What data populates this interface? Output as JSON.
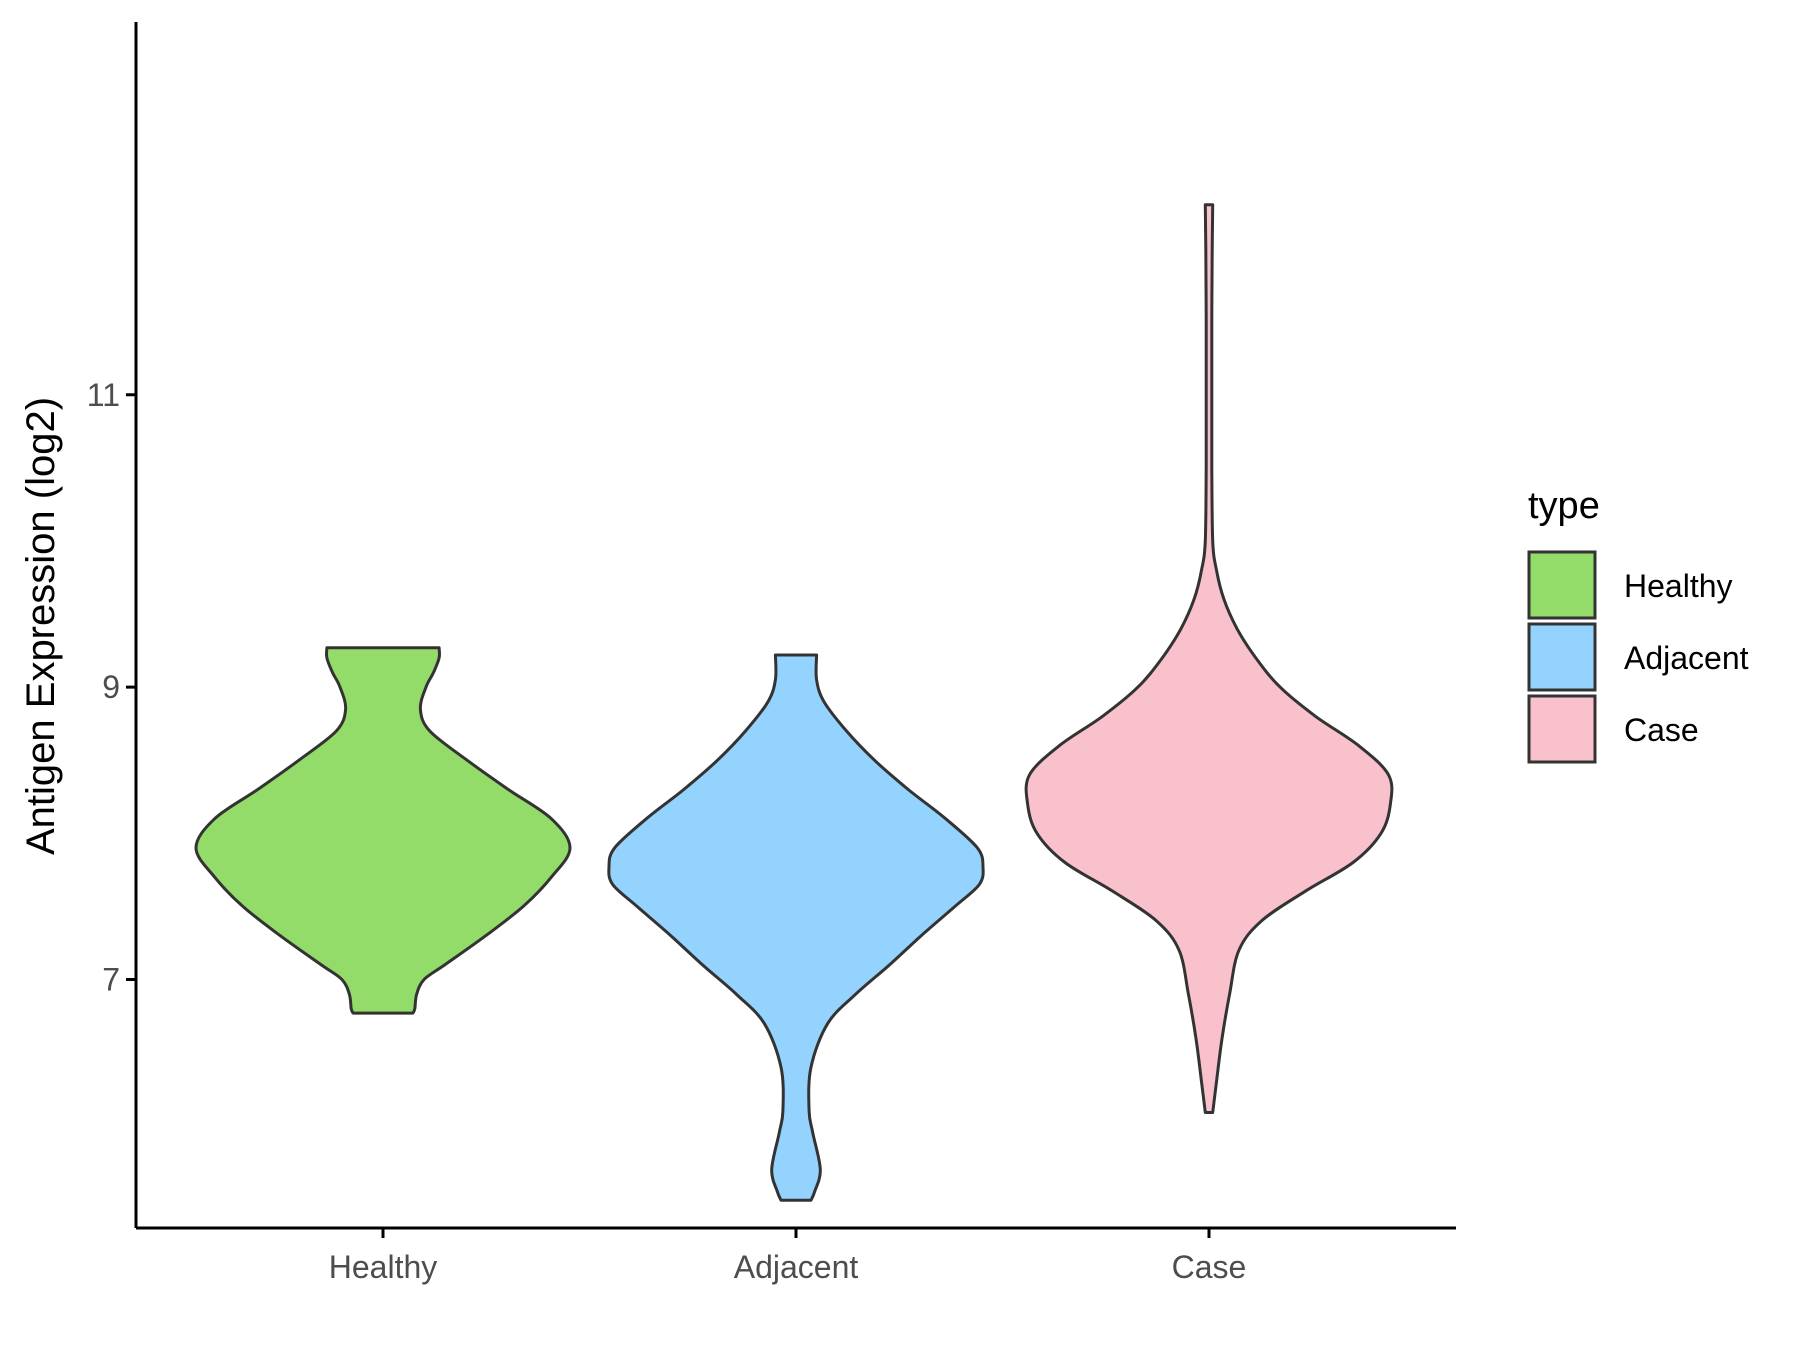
{
  "chart_data": {
    "type": "violin",
    "ylabel": "Antigen Expression (log2)",
    "xlabel": "",
    "ylim": [
      5.3,
      13.55
    ],
    "yticks": [
      7,
      9,
      11
    ],
    "categories": [
      "Healthy",
      "Adjacent",
      "Case"
    ],
    "legend": {
      "title": "type",
      "position": "right",
      "entries": [
        "Healthy",
        "Adjacent",
        "Case"
      ]
    },
    "colors": {
      "Healthy": "#93dc6a",
      "Adjacent": "#93d3fe",
      "Case": "#f8c1cc",
      "outline": "#333333",
      "axis": "#000000"
    },
    "series": [
      {
        "category": "Healthy",
        "profile": [
          [
            6.77,
            0.16
          ],
          [
            6.8,
            0.17
          ],
          [
            6.9,
            0.18
          ],
          [
            7.0,
            0.22
          ],
          [
            7.1,
            0.33
          ],
          [
            7.3,
            0.55
          ],
          [
            7.5,
            0.75
          ],
          [
            7.7,
            0.9
          ],
          [
            7.9,
            1.0
          ],
          [
            8.1,
            0.9
          ],
          [
            8.3,
            0.67
          ],
          [
            8.5,
            0.45
          ],
          [
            8.7,
            0.25
          ],
          [
            8.85,
            0.2
          ],
          [
            9.0,
            0.23
          ],
          [
            9.1,
            0.27
          ],
          [
            9.2,
            0.3
          ],
          [
            9.27,
            0.3
          ]
        ]
      },
      {
        "category": "Adjacent",
        "profile": [
          [
            5.49,
            0.08
          ],
          [
            5.55,
            0.1
          ],
          [
            5.7,
            0.13
          ],
          [
            5.95,
            0.09
          ],
          [
            6.1,
            0.07
          ],
          [
            6.4,
            0.08
          ],
          [
            6.7,
            0.17
          ],
          [
            6.9,
            0.32
          ],
          [
            7.1,
            0.5
          ],
          [
            7.3,
            0.67
          ],
          [
            7.5,
            0.85
          ],
          [
            7.65,
            0.98
          ],
          [
            7.77,
            1.0
          ],
          [
            7.9,
            0.97
          ],
          [
            8.1,
            0.8
          ],
          [
            8.3,
            0.6
          ],
          [
            8.5,
            0.42
          ],
          [
            8.7,
            0.27
          ],
          [
            8.9,
            0.15
          ],
          [
            9.05,
            0.11
          ],
          [
            9.22,
            0.11
          ]
        ]
      },
      {
        "category": "Case",
        "profile": [
          [
            6.09,
            0.02
          ],
          [
            6.3,
            0.04
          ],
          [
            6.6,
            0.07
          ],
          [
            6.9,
            0.11
          ],
          [
            7.2,
            0.16
          ],
          [
            7.4,
            0.28
          ],
          [
            7.6,
            0.51
          ],
          [
            7.8,
            0.77
          ],
          [
            8.0,
            0.92
          ],
          [
            8.2,
            0.97
          ],
          [
            8.4,
            0.96
          ],
          [
            8.6,
            0.8
          ],
          [
            8.8,
            0.57
          ],
          [
            9.0,
            0.38
          ],
          [
            9.2,
            0.25
          ],
          [
            9.4,
            0.15
          ],
          [
            9.6,
            0.08
          ],
          [
            9.8,
            0.04
          ],
          [
            10.0,
            0.02
          ],
          [
            10.5,
            0.015
          ],
          [
            11.0,
            0.015
          ],
          [
            11.5,
            0.015
          ],
          [
            12.0,
            0.017
          ],
          [
            12.3,
            0.02
          ]
        ]
      }
    ]
  }
}
